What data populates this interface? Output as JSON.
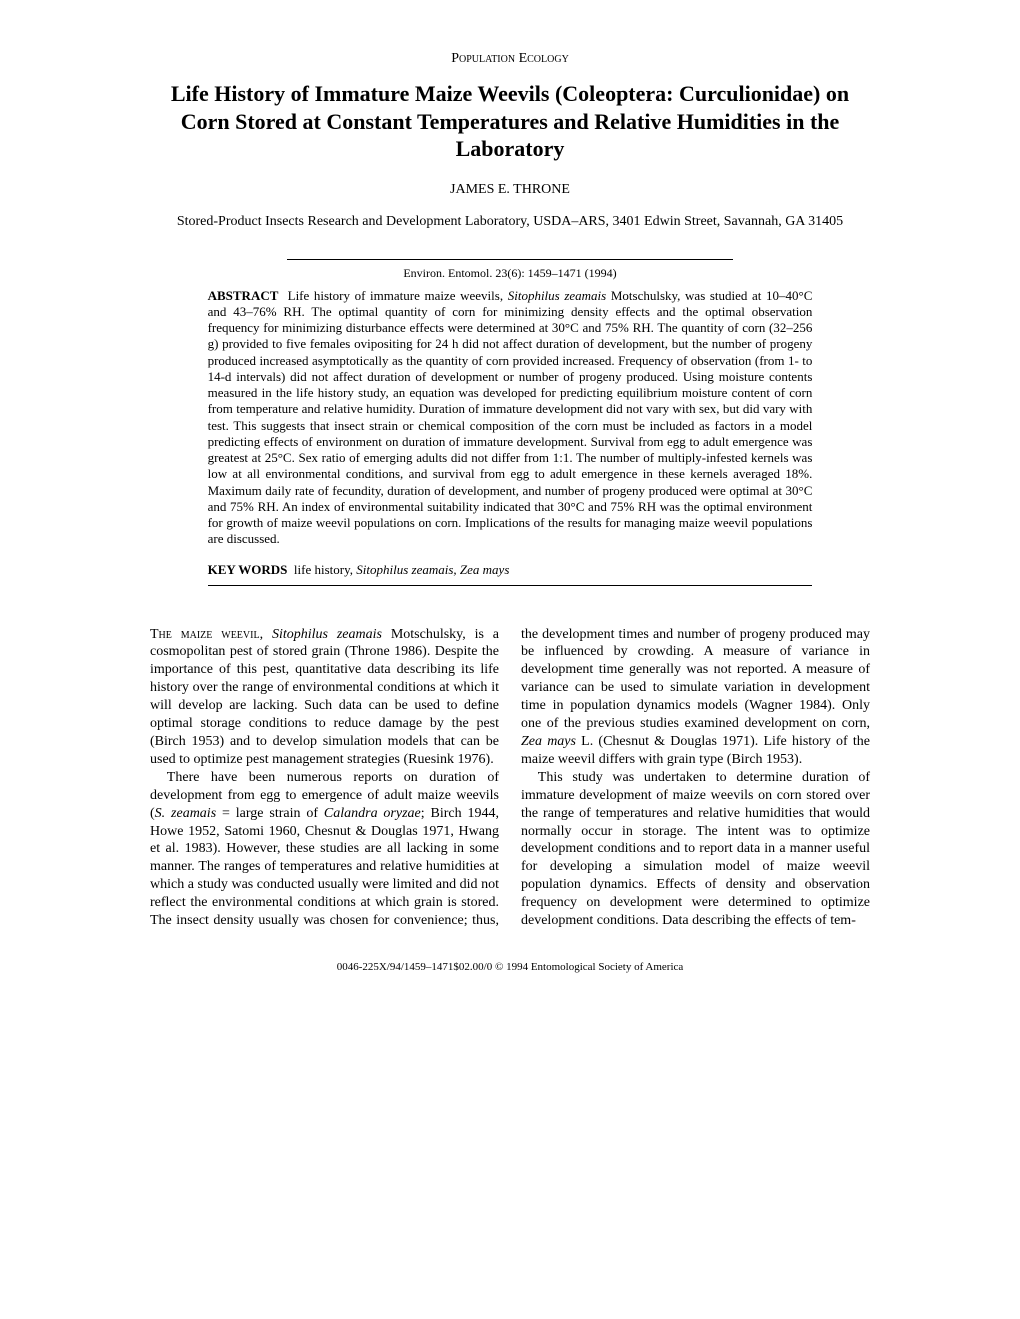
{
  "header": {
    "section_label": "Population Ecology"
  },
  "title": "Life History of Immature Maize Weevils (Coleoptera: Curculionidae) on Corn Stored at Constant Temperatures and Relative Humidities in the Laboratory",
  "author": "JAMES E. THRONE",
  "affiliation": "Stored-Product Insects Research and Development Laboratory, USDA–ARS,\n3401 Edwin Street, Savannah, GA 31405",
  "citation": "Environ. Entomol. 23(6): 1459–1471 (1994)",
  "abstract": {
    "label": "ABSTRACT",
    "text_html": "Life history of immature maize weevils, <i>Sitophilus zeamais</i> Motschulsky, was studied at 10–40°C and 43–76% RH. The optimal quantity of corn for minimizing density effects and the optimal observation frequency for minimizing disturbance effects were determined at 30°C and 75% RH. The quantity of corn (32–256 g) provided to five females ovipositing for 24 h did not affect duration of development, but the number of progeny produced increased asymptotically as the quantity of corn provided increased. Frequency of observation (from 1- to 14-d intervals) did not affect duration of development or number of progeny produced. Using moisture contents measured in the life history study, an equation was developed for predicting equilibrium moisture content of corn from temperature and relative humidity. Duration of immature development did not vary with sex, but did vary with test. This suggests that insect strain or chemical composition of the corn must be included as factors in a model predicting effects of environment on duration of immature development. Survival from egg to adult emergence was greatest at 25°C. Sex ratio of emerging adults did not differ from 1:1. The number of multiply-infested kernels was low at all environmental conditions, and survival from egg to adult emergence in these kernels averaged 18%. Maximum daily rate of fecundity, duration of development, and number of progeny produced were optimal at 30°C and 75% RH. An index of environmental suitability indicated that 30°C and 75% RH was the optimal environment for growth of maize weevil populations on corn. Implications of the results for managing maize weevil populations are discussed."
  },
  "keywords": {
    "label": "KEY WORDS",
    "text_html": "life history, <i>Sitophilus zeamais, Zea mays</i>"
  },
  "body": {
    "p1_html": "<span class=\"smallcaps\">The maize weevil,</span> <i>Sitophilus zeamais</i> Motschulsky, is a cosmopolitan pest of stored grain (Throne 1986). Despite the importance of this pest, quantitative data describing its life history over the range of environmental conditions at which it will develop are lacking. Such data can be used to define optimal storage conditions to reduce damage by the pest (Birch 1953) and to develop simulation models that can be used to optimize pest management strategies (Ruesink 1976).",
    "p2_html": "There have been numerous reports on duration of development from egg to emergence of adult maize weevils (<i>S. zeamais</i> = large strain of <i>Calandra oryzae</i>; Birch 1944, Howe 1952, Satomi 1960, Chesnut & Douglas 1971, Hwang et al. 1983). However, these studies are all lacking in some manner. The ranges of temperatures and relative humidities at which a study was conducted usually were limited and did not reflect the environmental conditions at which grain is stored. The insect density usually was chosen for convenience; thus, the development times and number of progeny produced may be influenced by crowding. A measure of variance in development time generally was not reported. A measure of variance can be used to simulate variation in development time in population dynamics models (Wagner 1984). Only one of the previous studies examined development on corn, <i>Zea mays</i> L. (Chesnut & Douglas 1971). Life history of the maize weevil differs with grain type (Birch 1953).",
    "p3_html": "This study was undertaken to determine duration of immature development of maize weevils on corn stored over the range of temperatures and relative humidities that would normally occur in storage. The intent was to optimize development conditions and to report data in a manner useful for developing a simulation model of maize weevil population dynamics. Effects of density and observation frequency on development were determined to optimize development conditions. Data describing the effects of tem-"
  },
  "footer": "0046-225X/94/1459–1471$02.00/0 © 1994 Entomological Society of America"
}
